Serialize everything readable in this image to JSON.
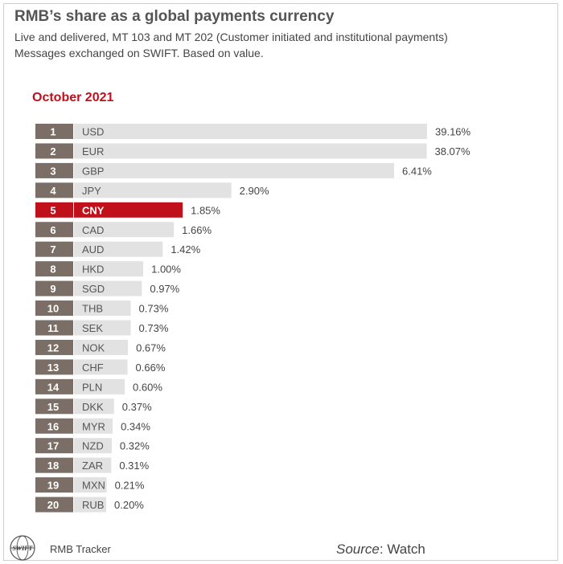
{
  "header": {
    "title": "RMB’s share as a global payments currency",
    "subtitle_line1": "Live and delivered,  MT 103 and MT 202 (Customer initiated and institutional payments)",
    "subtitle_line2": "Messages exchanged on SWIFT. Based on value."
  },
  "footer": {
    "tracker_label": "RMB Tracker",
    "source_prefix": "Source",
    "source_suffix": ": Watch",
    "logo_text": "SWIFT"
  },
  "colors": {
    "bar": "#e2e2e2",
    "rank_box": "#7a6e66",
    "highlight": "#c0101b",
    "text": "#444444"
  },
  "chart_data": {
    "type": "bar",
    "orientation": "horizontal",
    "title": "October 2021",
    "value_suffix": "%",
    "highlight": "CNY",
    "ranks": [
      1,
      2,
      3,
      4,
      5,
      6,
      7,
      8,
      9,
      10,
      11,
      12,
      13,
      14,
      15,
      16,
      17,
      18,
      19,
      20
    ],
    "categories": [
      "USD",
      "EUR",
      "GBP",
      "JPY",
      "CNY",
      "CAD",
      "AUD",
      "HKD",
      "SGD",
      "THB",
      "SEK",
      "NOK",
      "CHF",
      "PLN",
      "DKK",
      "MYR",
      "NZD",
      "ZAR",
      "MXN",
      "RUB"
    ],
    "values": [
      39.16,
      38.07,
      6.41,
      2.9,
      1.85,
      1.66,
      1.42,
      1.0,
      0.97,
      0.73,
      0.73,
      0.67,
      0.66,
      0.6,
      0.37,
      0.34,
      0.32,
      0.31,
      0.21,
      0.2
    ],
    "value_labels": [
      "39.16%",
      "38.07%",
      "6.41%",
      "2.90%",
      "1.85%",
      "1.66%",
      "1.42%",
      "1.00%",
      "0.97%",
      "0.73%",
      "0.73%",
      "0.67%",
      "0.66%",
      "0.60%",
      "0.37%",
      "0.34%",
      "0.32%",
      "0.31%",
      "0.21%",
      "0.20%"
    ]
  }
}
